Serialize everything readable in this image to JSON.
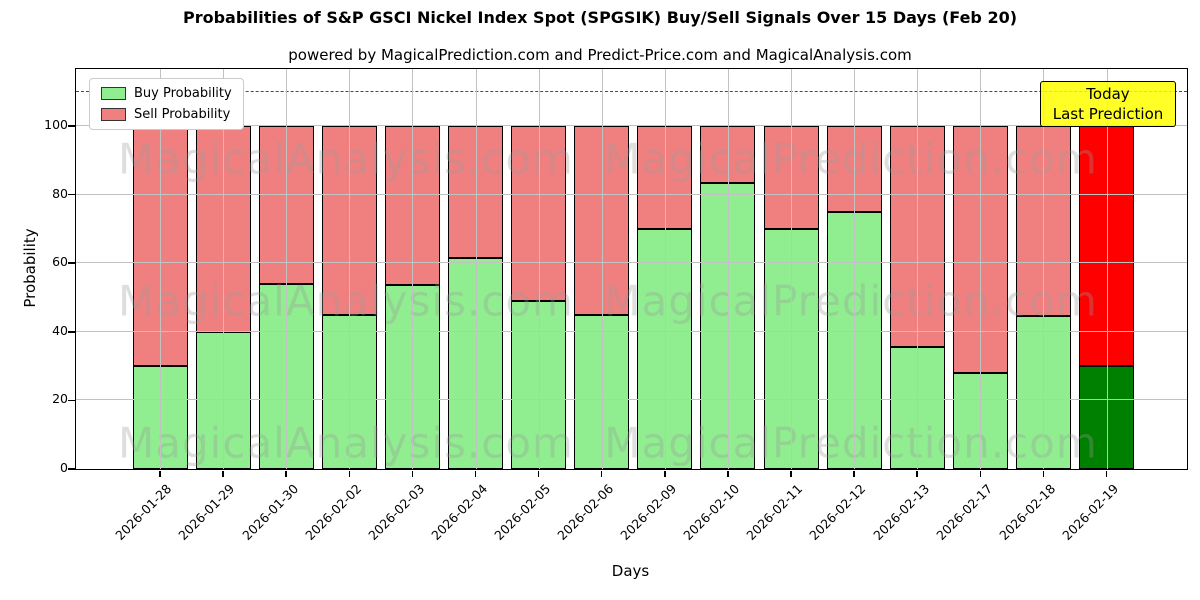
{
  "title": "Probabilities of S&P GSCI Nickel Index Spot (SPGSIK) Buy/Sell Signals Over 15 Days (Feb 20)",
  "subtitle": "powered by MagicalPrediction.com and Predict-Price.com and MagicalAnalysis.com",
  "legend": {
    "items": [
      {
        "label": "Buy Probability",
        "color": "#90EE90"
      },
      {
        "label": "Sell Probability",
        "color": "#F08080"
      }
    ]
  },
  "annotation_box": {
    "line1": "Today",
    "line2": "Last Prediction",
    "bg_color": "#FFFF00"
  },
  "watermark": {
    "left_text": "MagicalAnalysis.com",
    "right_text": "MagicalPrediction.com"
  },
  "chart_data": {
    "type": "bar",
    "stacked": true,
    "title": "Probabilities of S&P GSCI Nickel Index Spot (SPGSIK) Buy/Sell Signals Over 15 Days (Feb 20)",
    "xlabel": "Days",
    "ylabel": "Probability",
    "categories": [
      "2026-01-28",
      "2026-01-29",
      "2026-01-30",
      "2026-02-02",
      "2026-02-03",
      "2026-02-04",
      "2026-02-05",
      "2026-02-06",
      "2026-02-09",
      "2026-02-10",
      "2026-02-11",
      "2026-02-12",
      "2026-02-13",
      "2026-02-17",
      "2026-02-18",
      "2026-02-19"
    ],
    "series": [
      {
        "name": "Buy Probability",
        "color": "#90EE90",
        "values": [
          30,
          40,
          54,
          45,
          53.5,
          61.5,
          49,
          45,
          70,
          83.5,
          70,
          75,
          35.5,
          28,
          44.5,
          30
        ]
      },
      {
        "name": "Sell Probability",
        "color": "#F08080",
        "values": [
          70,
          60,
          46,
          55,
          46.5,
          38.5,
          51,
          55,
          30,
          16.5,
          30,
          25,
          64.5,
          72,
          55.5,
          70
        ]
      }
    ],
    "today_bar": {
      "category": "2026-02-19",
      "buy_color": "#008000",
      "sell_color": "#FF0000"
    },
    "yticks": [
      0,
      20,
      40,
      60,
      80,
      100
    ],
    "ylim": [
      0,
      116.6
    ],
    "dashed_line_y": 110,
    "grid": true,
    "legend_position": "upper left"
  }
}
